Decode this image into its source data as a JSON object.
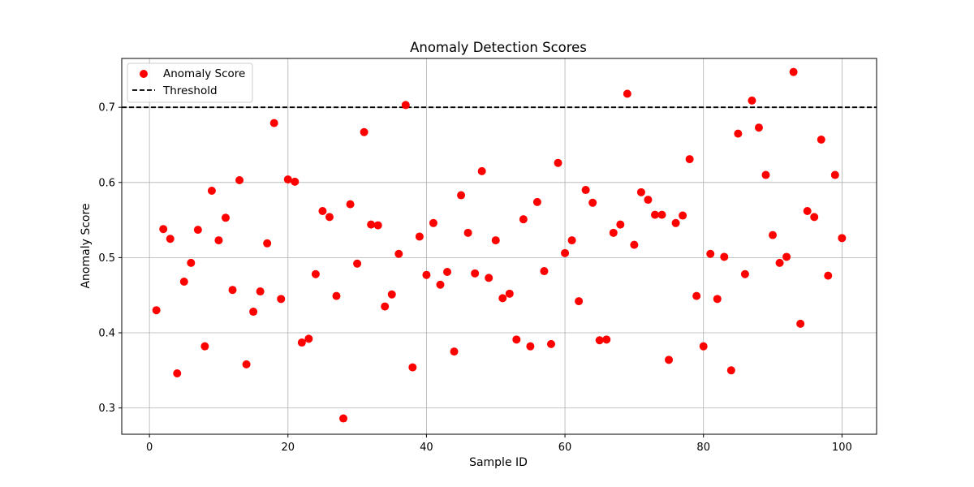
{
  "chart_data": {
    "type": "scatter",
    "title": "Anomaly Detection Scores",
    "xlabel": "Sample ID",
    "ylabel": "Anomaly Score",
    "xlim": [
      -4,
      105
    ],
    "ylim": [
      0.265,
      0.765
    ],
    "xticks": [
      0,
      20,
      40,
      60,
      80,
      100
    ],
    "yticks": [
      0.3,
      0.4,
      0.5,
      0.6,
      0.7
    ],
    "xtick_labels": [
      "0",
      "20",
      "40",
      "60",
      "80",
      "100"
    ],
    "ytick_labels": [
      "0.3",
      "0.4",
      "0.5",
      "0.6",
      "0.7"
    ],
    "grid": true,
    "legend_position": "top-left",
    "series": [
      {
        "name": "Anomaly Score",
        "color": "#ff0000",
        "x": [
          1,
          2,
          3,
          4,
          5,
          6,
          7,
          8,
          9,
          10,
          11,
          12,
          13,
          14,
          15,
          16,
          17,
          18,
          19,
          20,
          21,
          22,
          23,
          24,
          25,
          26,
          27,
          28,
          29,
          30,
          31,
          32,
          33,
          34,
          35,
          36,
          37,
          38,
          39,
          40,
          41,
          42,
          43,
          44,
          45,
          46,
          47,
          48,
          49,
          50,
          51,
          52,
          53,
          54,
          55,
          56,
          57,
          58,
          59,
          60,
          61,
          62,
          63,
          64,
          65,
          66,
          67,
          68,
          69,
          70,
          71,
          72,
          73,
          74,
          75,
          76,
          77,
          78,
          79,
          80,
          81,
          82,
          83,
          84,
          85,
          86,
          87,
          88,
          89,
          90,
          91,
          92,
          93,
          94,
          95,
          96,
          97,
          98,
          99,
          100
        ],
        "y": [
          0.43,
          0.538,
          0.525,
          0.346,
          0.468,
          0.493,
          0.537,
          0.382,
          0.589,
          0.523,
          0.553,
          0.457,
          0.603,
          0.358,
          0.428,
          0.455,
          0.519,
          0.679,
          0.445,
          0.604,
          0.601,
          0.387,
          0.392,
          0.478,
          0.562,
          0.554,
          0.449,
          0.286,
          0.571,
          0.492,
          0.667,
          0.544,
          0.543,
          0.435,
          0.451,
          0.505,
          0.703,
          0.354,
          0.528,
          0.477,
          0.546,
          0.464,
          0.481,
          0.375,
          0.583,
          0.533,
          0.479,
          0.615,
          0.473,
          0.523,
          0.446,
          0.452,
          0.391,
          0.551,
          0.382,
          0.574,
          0.482,
          0.385,
          0.626,
          0.506,
          0.523,
          0.442,
          0.59,
          0.573,
          0.39,
          0.391,
          0.533,
          0.544,
          0.718,
          0.517,
          0.587,
          0.577,
          0.557,
          0.557,
          0.364,
          0.546,
          0.556,
          0.631,
          0.449,
          0.382,
          0.505,
          0.445,
          0.501,
          0.35,
          0.665,
          0.478,
          0.709,
          0.673,
          0.61,
          0.53,
          0.493,
          0.501,
          0.747,
          0.412,
          0.562,
          0.554,
          0.657,
          0.476,
          0.61,
          0.526
        ]
      }
    ],
    "threshold": {
      "name": "Threshold",
      "value": 0.7,
      "color": "#000000",
      "style": "dashed"
    }
  }
}
